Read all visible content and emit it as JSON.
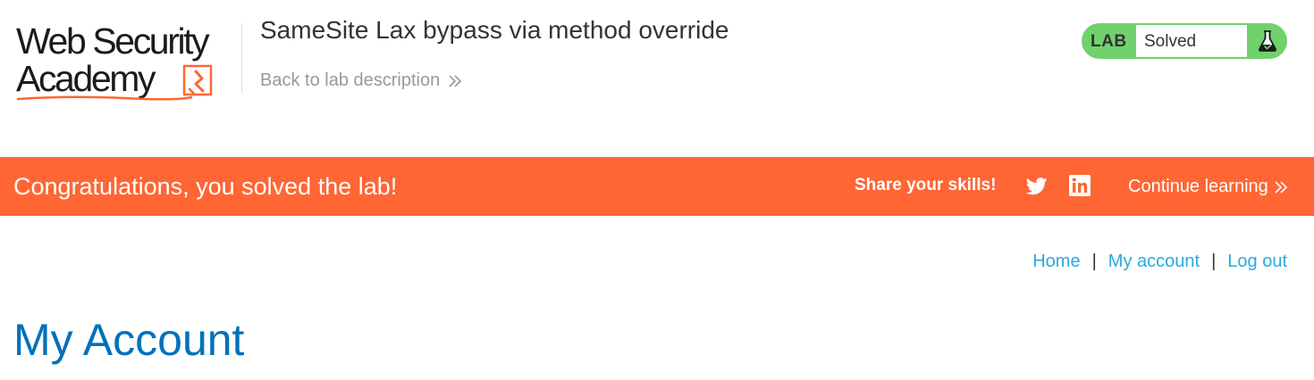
{
  "header": {
    "logo": {
      "line1": "Web Security",
      "line2": "Academy"
    },
    "lab_title": "SameSite Lax bypass via method override",
    "back_link": "Back to lab description",
    "lab_status": {
      "label": "LAB",
      "value": "Solved",
      "icon": "flask-icon"
    }
  },
  "banner": {
    "message": "Congratulations, you solved the lab!",
    "share_label": "Share your skills!",
    "share_icons": [
      "twitter-icon",
      "linkedin-icon"
    ],
    "continue_label": "Continue learning"
  },
  "nav": {
    "home": "Home",
    "separator": "|",
    "my_account": "My account",
    "log_out": "Log out"
  },
  "page": {
    "title": "My Account"
  },
  "colors": {
    "banner": "#ff6633",
    "status_green": "#70d16d",
    "link_blue": "#29a8e0",
    "title_blue": "#0071bc",
    "logo_accent": "#ff6633"
  }
}
